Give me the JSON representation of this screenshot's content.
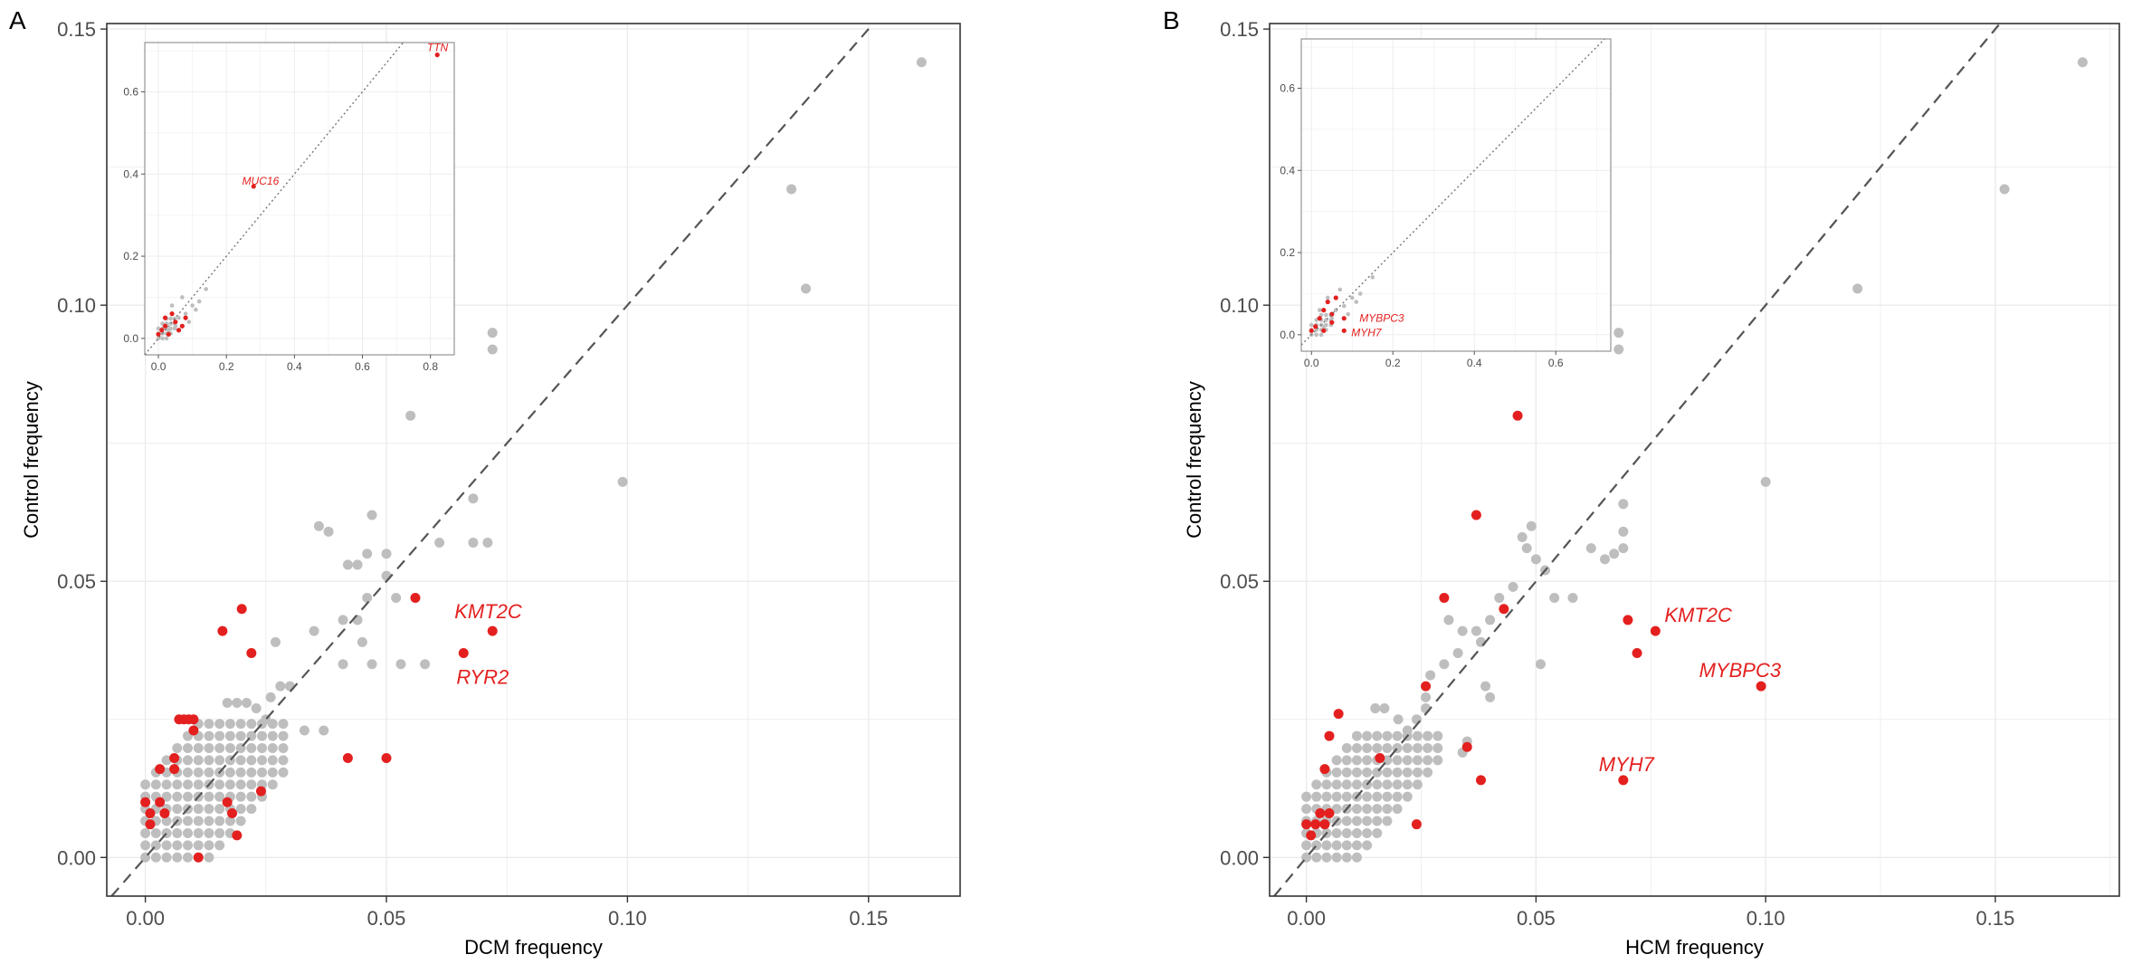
{
  "colors": {
    "grey": "#bebebe",
    "red": "#e3201f",
    "grid": "#ebebeb",
    "axis": "#333333",
    "diagonal": "#555555"
  },
  "chart_data": [
    {
      "panel_label": "A",
      "type": "scatter",
      "xlabel": "DCM frequency",
      "ylabel": "Control frequency",
      "xlim": [
        -0.008,
        0.169
      ],
      "ylim": [
        -0.007,
        0.151
      ],
      "xticks": [
        0.0,
        0.05,
        0.1,
        0.15
      ],
      "xtick_labels": [
        "0.00",
        "0.05",
        "0.10",
        "0.15"
      ],
      "yticks": [
        0.0,
        0.05,
        0.1,
        0.15
      ],
      "ytick_labels": [
        "0.00",
        "0.05",
        "0.10",
        "0.15"
      ],
      "grid": true,
      "reference_line": "y = x",
      "grey_points": [
        [
          0.161,
          0.144
        ],
        [
          0.134,
          0.121
        ],
        [
          0.137,
          0.103
        ],
        [
          0.099,
          0.068
        ],
        [
          0.072,
          0.095
        ],
        [
          0.072,
          0.092
        ],
        [
          0.055,
          0.08
        ],
        [
          0.068,
          0.065
        ],
        [
          0.068,
          0.057
        ],
        [
          0.071,
          0.057
        ],
        [
          0.047,
          0.062
        ],
        [
          0.036,
          0.06
        ],
        [
          0.038,
          0.059
        ],
        [
          0.046,
          0.055
        ],
        [
          0.05,
          0.055
        ],
        [
          0.044,
          0.053
        ],
        [
          0.042,
          0.053
        ],
        [
          0.061,
          0.057
        ],
        [
          0.046,
          0.047
        ],
        [
          0.05,
          0.051
        ],
        [
          0.052,
          0.047
        ],
        [
          0.044,
          0.043
        ],
        [
          0.041,
          0.043
        ],
        [
          0.035,
          0.041
        ],
        [
          0.045,
          0.039
        ],
        [
          0.053,
          0.035
        ],
        [
          0.058,
          0.035
        ],
        [
          0.047,
          0.035
        ],
        [
          0.041,
          0.035
        ],
        [
          0.027,
          0.039
        ],
        [
          0.028,
          0.031
        ],
        [
          0.03,
          0.031
        ],
        [
          0.026,
          0.029
        ],
        [
          0.037,
          0.023
        ],
        [
          0.033,
          0.023
        ],
        [
          0.017,
          0.028
        ],
        [
          0.019,
          0.028
        ],
        [
          0.021,
          0.028
        ],
        [
          0.023,
          0.027
        ],
        [
          0.025,
          0.025
        ]
      ],
      "grey_cloud": {
        "x_max": 0.03,
        "y_max": 0.025,
        "band": 0.015
      },
      "red_points": [
        [
          0.0,
          0.01
        ],
        [
          0.001,
          0.008
        ],
        [
          0.003,
          0.01
        ],
        [
          0.001,
          0.006
        ],
        [
          0.004,
          0.008
        ],
        [
          0.003,
          0.016
        ],
        [
          0.006,
          0.016
        ],
        [
          0.006,
          0.018
        ],
        [
          0.007,
          0.025
        ],
        [
          0.008,
          0.025
        ],
        [
          0.009,
          0.025
        ],
        [
          0.01,
          0.025
        ],
        [
          0.01,
          0.023
        ],
        [
          0.011,
          0.0
        ],
        [
          0.017,
          0.01
        ],
        [
          0.018,
          0.008
        ],
        [
          0.019,
          0.004
        ],
        [
          0.016,
          0.041
        ],
        [
          0.02,
          0.045
        ],
        [
          0.022,
          0.037
        ],
        [
          0.024,
          0.012
        ],
        [
          0.042,
          0.018
        ],
        [
          0.05,
          0.018
        ],
        [
          0.056,
          0.047
        ],
        [
          0.066,
          0.037
        ],
        [
          0.072,
          0.041
        ]
      ],
      "labels": [
        {
          "text": "KMT2C",
          "x": 0.072,
          "y": 0.041
        },
        {
          "text": "RYR2",
          "x": 0.066,
          "y": 0.037
        }
      ],
      "inset": {
        "xlim": [
          -0.04,
          0.87
        ],
        "ylim": [
          -0.04,
          0.72
        ],
        "xticks": [
          0.0,
          0.2,
          0.4,
          0.6,
          0.8
        ],
        "xtick_labels": [
          "0.0",
          "0.2",
          "0.4",
          "0.6",
          "0.8"
        ],
        "yticks": [
          0.0,
          0.2,
          0.4,
          0.6
        ],
        "ytick_labels": [
          "0.0",
          "0.2",
          "0.4",
          "0.6"
        ],
        "grey_points": [
          [
            0.05,
            0.03
          ],
          [
            0.06,
            0.05
          ],
          [
            0.08,
            0.06
          ],
          [
            0.1,
            0.08
          ],
          [
            0.12,
            0.09
          ],
          [
            0.14,
            0.12
          ],
          [
            0.04,
            0.08
          ],
          [
            0.07,
            0.1
          ],
          [
            0.03,
            0.02
          ],
          [
            0.09,
            0.04
          ],
          [
            0.02,
            0.05
          ],
          [
            0.11,
            0.07
          ]
        ],
        "grey_cloud": {
          "x_max": 0.05,
          "y_max": 0.05,
          "band": 0.025
        },
        "red_points": [
          [
            0.82,
            0.69
          ],
          [
            0.28,
            0.37
          ],
          [
            0.0,
            0.01
          ],
          [
            0.01,
            0.02
          ],
          [
            0.02,
            0.03
          ],
          [
            0.03,
            0.01
          ],
          [
            0.05,
            0.04
          ],
          [
            0.06,
            0.02
          ],
          [
            0.08,
            0.05
          ],
          [
            0.04,
            0.06
          ],
          [
            0.02,
            0.05
          ],
          [
            0.07,
            0.03
          ]
        ],
        "labels": [
          {
            "text": "TTN",
            "x": 0.82,
            "y": 0.69
          },
          {
            "text": "MUC16",
            "x": 0.28,
            "y": 0.37
          }
        ]
      }
    },
    {
      "panel_label": "B",
      "type": "scatter",
      "xlabel": "HCM frequency",
      "ylabel": "Control frequency",
      "xlim": [
        -0.008,
        0.177
      ],
      "ylim": [
        -0.007,
        0.151
      ],
      "xticks": [
        0.0,
        0.05,
        0.1,
        0.15
      ],
      "xtick_labels": [
        "0.00",
        "0.05",
        "0.10",
        "0.15"
      ],
      "yticks": [
        0.0,
        0.05,
        0.1,
        0.15
      ],
      "ytick_labels": [
        "0.00",
        "0.05",
        "0.10",
        "0.15"
      ],
      "grid": true,
      "reference_line": "y = x",
      "grey_points": [
        [
          0.169,
          0.144
        ],
        [
          0.152,
          0.121
        ],
        [
          0.12,
          0.103
        ],
        [
          0.1,
          0.068
        ],
        [
          0.068,
          0.095
        ],
        [
          0.068,
          0.092
        ],
        [
          0.069,
          0.064
        ],
        [
          0.069,
          0.059
        ],
        [
          0.069,
          0.056
        ],
        [
          0.065,
          0.054
        ],
        [
          0.062,
          0.056
        ],
        [
          0.067,
          0.055
        ],
        [
          0.049,
          0.06
        ],
        [
          0.047,
          0.058
        ],
        [
          0.048,
          0.056
        ],
        [
          0.05,
          0.054
        ],
        [
          0.052,
          0.052
        ],
        [
          0.045,
          0.049
        ],
        [
          0.042,
          0.047
        ],
        [
          0.054,
          0.047
        ],
        [
          0.058,
          0.047
        ],
        [
          0.04,
          0.043
        ],
        [
          0.037,
          0.041
        ],
        [
          0.034,
          0.041
        ],
        [
          0.038,
          0.039
        ],
        [
          0.031,
          0.043
        ],
        [
          0.033,
          0.037
        ],
        [
          0.03,
          0.035
        ],
        [
          0.051,
          0.035
        ],
        [
          0.039,
          0.031
        ],
        [
          0.04,
          0.029
        ],
        [
          0.027,
          0.033
        ],
        [
          0.026,
          0.029
        ],
        [
          0.035,
          0.021
        ],
        [
          0.034,
          0.019
        ],
        [
          0.026,
          0.027
        ],
        [
          0.024,
          0.025
        ],
        [
          0.022,
          0.023
        ],
        [
          0.02,
          0.025
        ],
        [
          0.017,
          0.027
        ],
        [
          0.015,
          0.027
        ]
      ],
      "grey_cloud": {
        "x_max": 0.03,
        "y_max": 0.022,
        "band": 0.013
      },
      "red_points": [
        [
          0.0,
          0.006
        ],
        [
          0.001,
          0.004
        ],
        [
          0.002,
          0.006
        ],
        [
          0.003,
          0.008
        ],
        [
          0.004,
          0.006
        ],
        [
          0.005,
          0.008
        ],
        [
          0.004,
          0.016
        ],
        [
          0.005,
          0.022
        ],
        [
          0.007,
          0.026
        ],
        [
          0.016,
          0.018
        ],
        [
          0.024,
          0.006
        ],
        [
          0.026,
          0.031
        ],
        [
          0.03,
          0.047
        ],
        [
          0.035,
          0.02
        ],
        [
          0.038,
          0.014
        ],
        [
          0.037,
          0.062
        ],
        [
          0.043,
          0.045
        ],
        [
          0.046,
          0.08
        ],
        [
          0.07,
          0.043
        ],
        [
          0.072,
          0.037
        ],
        [
          0.076,
          0.041
        ],
        [
          0.069,
          0.014
        ],
        [
          0.099,
          0.031
        ]
      ],
      "labels": [
        {
          "text": "KMT2C",
          "x": 0.076,
          "y": 0.041
        },
        {
          "text": "MYBPC3",
          "x": 0.099,
          "y": 0.031
        },
        {
          "text": "MYH7",
          "x": 0.069,
          "y": 0.014
        }
      ],
      "inset": {
        "xlim": [
          -0.025,
          0.735
        ],
        "ylim": [
          -0.04,
          0.72
        ],
        "xticks": [
          0.0,
          0.2,
          0.4,
          0.6
        ],
        "xtick_labels": [
          "0.0",
          "0.2",
          "0.4",
          "0.6"
        ],
        "yticks": [
          0.0,
          0.2,
          0.4,
          0.6
        ],
        "ytick_labels": [
          "0.0",
          "0.2",
          "0.4",
          "0.6"
        ],
        "grey_points": [
          [
            0.05,
            0.04
          ],
          [
            0.06,
            0.06
          ],
          [
            0.08,
            0.07
          ],
          [
            0.1,
            0.09
          ],
          [
            0.12,
            0.1
          ],
          [
            0.15,
            0.14
          ],
          [
            0.04,
            0.09
          ],
          [
            0.07,
            0.11
          ],
          [
            0.03,
            0.02
          ],
          [
            0.09,
            0.05
          ],
          [
            0.02,
            0.06
          ],
          [
            0.11,
            0.08
          ]
        ],
        "grey_cloud": {
          "x_max": 0.05,
          "y_max": 0.05,
          "band": 0.025
        },
        "red_points": [
          [
            0.0,
            0.01
          ],
          [
            0.01,
            0.02
          ],
          [
            0.02,
            0.04
          ],
          [
            0.03,
            0.06
          ],
          [
            0.05,
            0.05
          ],
          [
            0.05,
            0.03
          ],
          [
            0.04,
            0.08
          ],
          [
            0.06,
            0.09
          ],
          [
            0.03,
            0.01
          ],
          [
            0.08,
            0.04
          ],
          [
            0.08,
            0.01
          ]
        ],
        "labels": [
          {
            "text": "MYBPC3",
            "x": 0.1,
            "y": 0.04
          },
          {
            "text": "MYH7",
            "x": 0.08,
            "y": 0.01
          }
        ]
      }
    }
  ]
}
